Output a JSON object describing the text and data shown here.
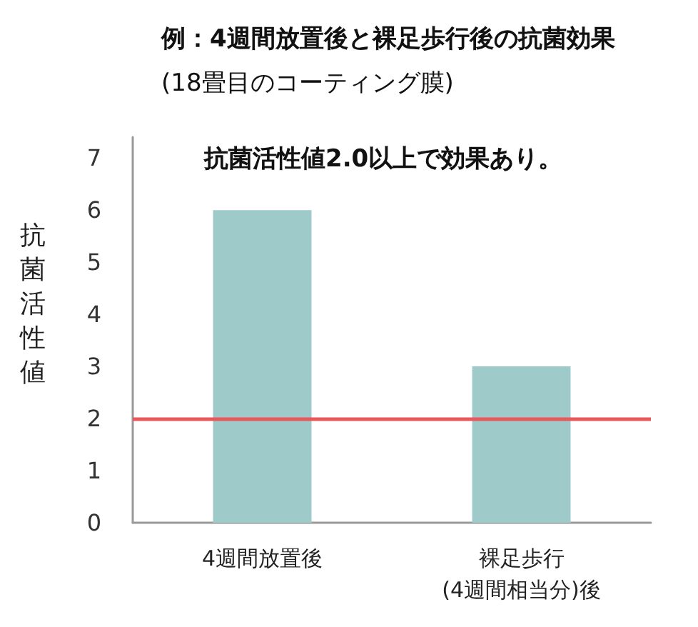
{
  "chart_data": {
    "type": "bar",
    "title": "例：4週間放置後と裸足歩行後の抗菌効果",
    "subtitle": "(18畳目のコーティング膜)",
    "ylabel": "抗菌活性値",
    "categories": [
      "4週間放置後",
      "裸足歩行\n(4週間相当分)後"
    ],
    "values": [
      6,
      3
    ],
    "color": "#9ecbc9",
    "ylim": [
      0,
      7.4
    ],
    "yticks": [
      0,
      1,
      2,
      3,
      4,
      5,
      6,
      7
    ],
    "grid": false,
    "ref_lines": [
      {
        "axis": "y",
        "value": 2,
        "color": "#e8575a",
        "line_style": "solid"
      }
    ],
    "annotations": [
      "抗菌活性値2.0以上で効果あり。"
    ]
  }
}
